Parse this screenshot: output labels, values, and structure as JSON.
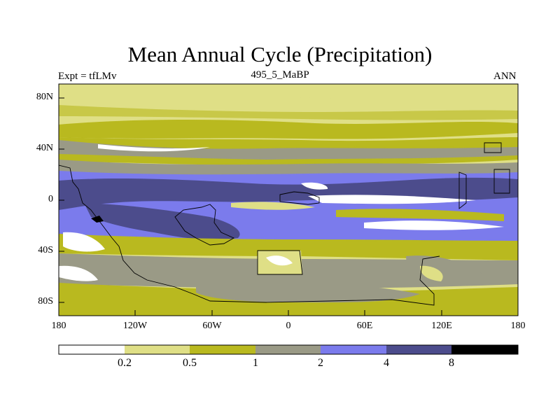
{
  "title": "Mean Annual Cycle (Precipitation)",
  "experiment_label": "Expt = tfLMv",
  "subtitle": "495_5_MaBP",
  "season": "ANN",
  "map": {
    "lon_ticks": [
      "180",
      "120W",
      "60W",
      "0",
      "60E",
      "120E",
      "180"
    ],
    "lat_ticks": [
      "80N",
      "40N",
      "0",
      "40S",
      "80S"
    ]
  },
  "colorbar": {
    "labels": [
      "0.2",
      "0.5",
      "1",
      "2",
      "4",
      "8"
    ],
    "colors": [
      "#ffffff",
      "#dfdf86",
      "#b9b91f",
      "#9a9a86",
      "#7b7bec",
      "#4c4c8c",
      "#000000"
    ]
  }
}
